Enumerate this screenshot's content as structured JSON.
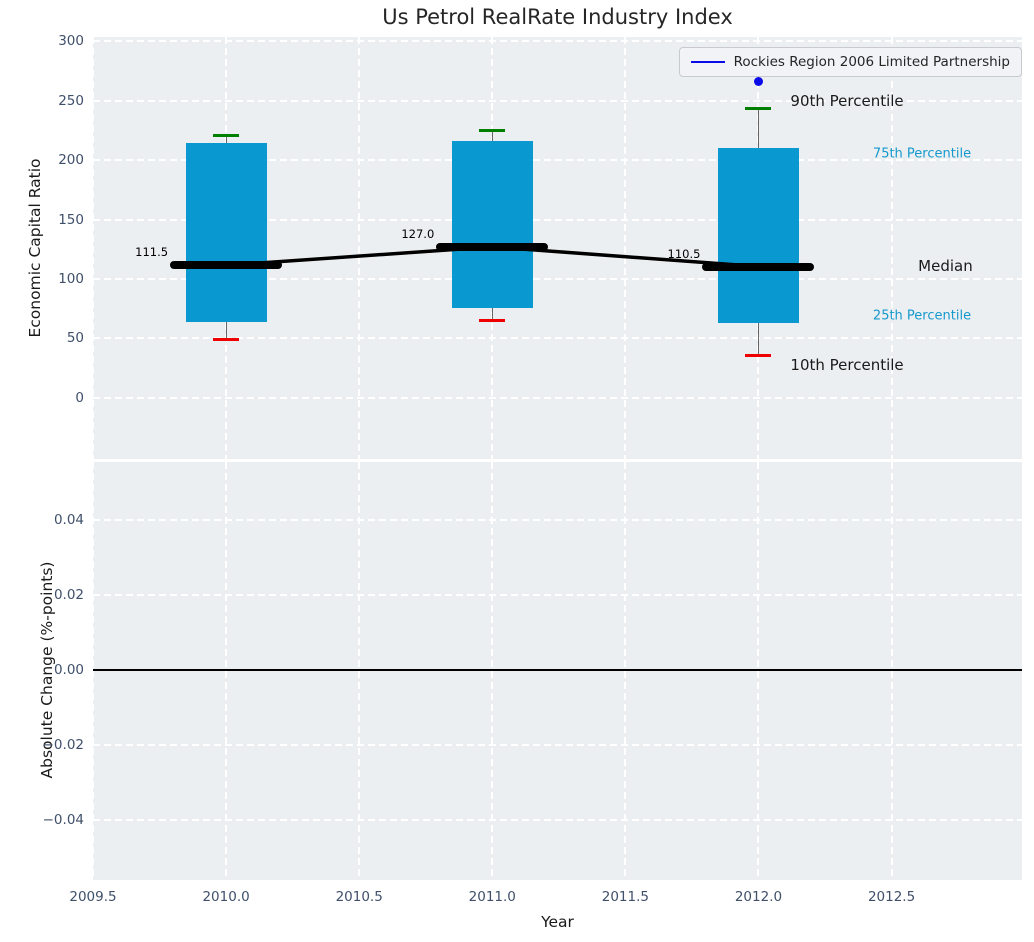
{
  "title": "Us Petrol RealRate Industry Index",
  "legend": {
    "label": "Rockies Region 2006 Limited Partnership"
  },
  "colors": {
    "plot_bg": "#eceff1",
    "grid": "#ffffff",
    "box_fill": "#0999d0",
    "whisker": "#666666",
    "cap_high": "#008000",
    "cap_low": "#ee0000",
    "median_line": "#000000",
    "company_blue": "#0b0bea",
    "percentile_cyan": "#1599cd",
    "tick_text": "#40506b",
    "zero_line": "#000000"
  },
  "x_axis": {
    "label": "Year",
    "xlim": [
      2009.5,
      2012.99
    ],
    "ticks": [
      2009.5,
      2010.0,
      2010.5,
      2011.0,
      2011.5,
      2012.0,
      2012.5
    ],
    "tick_labels": [
      "2009.5",
      "2010.0",
      "2010.5",
      "2011.0",
      "2011.5",
      "2012.0",
      "2012.5"
    ]
  },
  "chart_data": [
    {
      "type": "boxplot",
      "title": "Us Petrol RealRate Industry Index",
      "ylabel": "Economic Capital Ratio",
      "ylim": [
        -51.3,
        303.4
      ],
      "yticks": [
        0,
        50,
        100,
        150,
        200,
        250,
        300
      ],
      "ytick_labels": [
        "0",
        "50",
        "100",
        "150",
        "200",
        "250",
        "300"
      ],
      "grid": true,
      "legend_position": "upper right",
      "series_label": "Rockies Region 2006 Limited Partnership",
      "boxes": [
        {
          "x": 2010,
          "p10": 49,
          "p25": 64,
          "median": 111.5,
          "p75": 214,
          "p90": 221,
          "median_label": "111.5"
        },
        {
          "x": 2011,
          "p10": 65,
          "p25": 76,
          "median": 127.0,
          "p75": 216,
          "p90": 225,
          "median_label": "127.0"
        },
        {
          "x": 2012,
          "p10": 36,
          "p25": 63,
          "median": 110.5,
          "p75": 210,
          "p90": 243,
          "median_label": "110.5"
        }
      ],
      "median_trend": [
        [
          2010,
          111.5
        ],
        [
          2011,
          127.0
        ],
        [
          2012,
          110.5
        ]
      ],
      "company_points": [
        {
          "x": 2012,
          "y": 266
        }
      ],
      "annotations": [
        {
          "text": "90th Percentile",
          "x": 2012.12,
          "y": 250,
          "color": "black",
          "size": 15
        },
        {
          "text": "75th Percentile",
          "x": 2012.43,
          "y": 205,
          "color": "cyan",
          "size": 13
        },
        {
          "text": "Median",
          "x": 2012.6,
          "y": 111,
          "color": "black",
          "size": 15
        },
        {
          "text": "25th Percentile",
          "x": 2012.43,
          "y": 69,
          "color": "cyan",
          "size": 13
        },
        {
          "text": "10th Percentile",
          "x": 2012.12,
          "y": 28,
          "color": "black",
          "size": 15
        }
      ]
    },
    {
      "type": "line",
      "ylabel": "Absolute Change (%-points)",
      "ylim": [
        -0.056,
        0.0555
      ],
      "yticks": [
        0.04,
        0.02,
        0.0,
        -0.02,
        -0.04
      ],
      "ytick_labels": [
        "0.04",
        "0.02",
        "0.00",
        "−0.02",
        "−0.04"
      ],
      "grid": true,
      "zero_line": 0.0,
      "series": []
    }
  ]
}
